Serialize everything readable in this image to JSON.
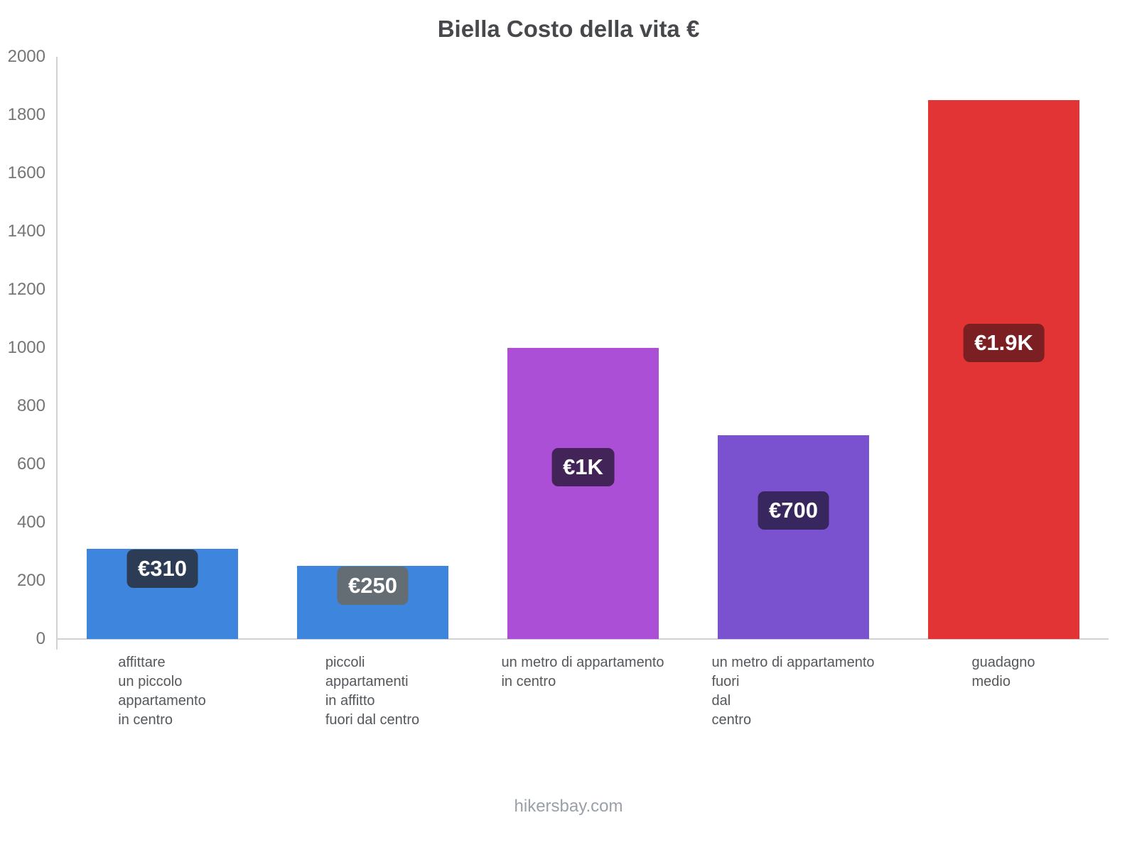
{
  "title": "Biella Costo della vita €",
  "footer": "hikersbay.com",
  "chart_data": {
    "type": "bar",
    "title": "Biella Costo della vita €",
    "categories": [
      "affittare un piccolo appartamento in centro",
      "piccoli appartamenti in affitto fuori dal centro",
      "un metro di appartamento in centro",
      "un metro di appartamento fuori dal centro",
      "guadagno medio"
    ],
    "category_lines": [
      [
        "affittare",
        "un piccolo",
        "appartamento",
        "in centro"
      ],
      [
        "piccoli",
        "appartamenti",
        "in affitto",
        "fuori dal centro"
      ],
      [
        "un metro di appartamento",
        "in centro"
      ],
      [
        "un metro di appartamento",
        "fuori",
        "dal",
        "centro"
      ],
      [
        "guadagno",
        "medio"
      ]
    ],
    "values": [
      310,
      250,
      1000,
      700,
      1850
    ],
    "value_labels": [
      "€310",
      "€250",
      "€1K",
      "€700",
      "€1.9K"
    ],
    "bar_colors": [
      "#3d85dd",
      "#3d85dd",
      "#ab4fd6",
      "#7a52cf",
      "#e23434"
    ],
    "badge_colors": [
      "#2c3c54",
      "#646d74",
      "#432459",
      "#38265f",
      "#7c1f22"
    ],
    "badge_offset_frac": [
      0.22,
      0.16,
      0.41,
      0.37,
      0.45
    ],
    "xlabel": "",
    "ylabel": "",
    "ylim": [
      0,
      2000
    ],
    "yticks": [
      0,
      200,
      400,
      600,
      800,
      1000,
      1200,
      1400,
      1600,
      1800,
      2000
    ],
    "grid": false,
    "legend": "none",
    "currency": "€"
  }
}
